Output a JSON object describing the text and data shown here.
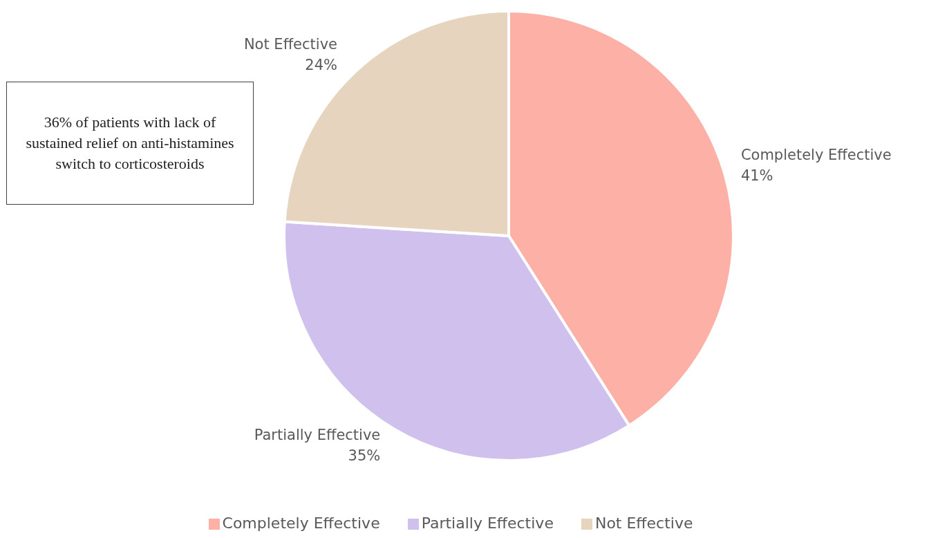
{
  "chart_data": {
    "type": "pie",
    "categories": [
      "Completely Effective",
      "Partially Effective",
      "Not Effective"
    ],
    "values": [
      41,
      35,
      24
    ],
    "colors": [
      "#fdb0a6",
      "#cfc0ee",
      "#e6d4bf"
    ],
    "value_labels": [
      "41%",
      "35%",
      "24%"
    ],
    "legend": "bottom",
    "annotations": [
      "36% of patients with lack of sustained relief on anti-histamines switch to corticosteroids"
    ]
  }
}
